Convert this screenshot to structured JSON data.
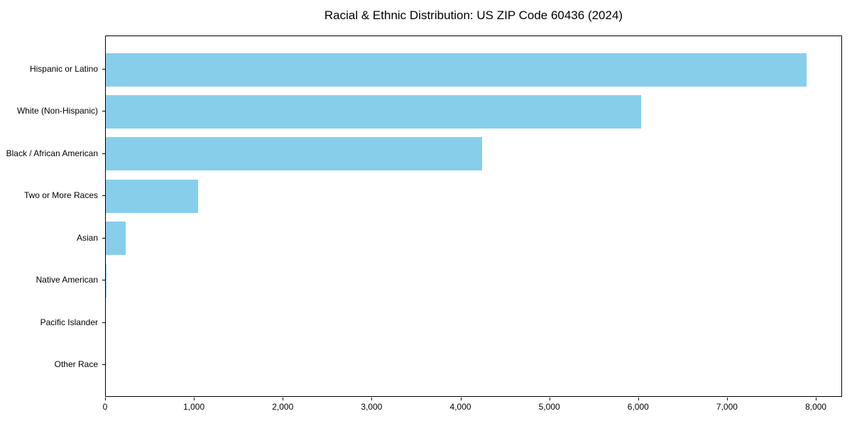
{
  "chart_data": {
    "type": "bar",
    "orientation": "horizontal",
    "title": "Racial & Ethnic Distribution: US ZIP Code 60436 (2024)",
    "categories": [
      "Hispanic or Latino",
      "White (Non-Hispanic)",
      "Black / African American",
      "Two or More Races",
      "Asian",
      "Native American",
      "Pacific Islander",
      "Other Race"
    ],
    "values": [
      7900,
      6040,
      4240,
      1040,
      225,
      12,
      0,
      0
    ],
    "xlabel": "",
    "ylabel": "",
    "xlim": [
      0,
      8295
    ],
    "xticks": [
      0,
      1000,
      2000,
      3000,
      4000,
      5000,
      6000,
      7000,
      8000
    ],
    "xtick_labels": [
      "0",
      "1,000",
      "2,000",
      "3,000",
      "4,000",
      "5,000",
      "6,000",
      "7,000",
      "8,000"
    ],
    "bar_color": "#87CEEB",
    "axis_color": "#000000",
    "text_color": "#000000",
    "grid": false,
    "legend": null
  }
}
